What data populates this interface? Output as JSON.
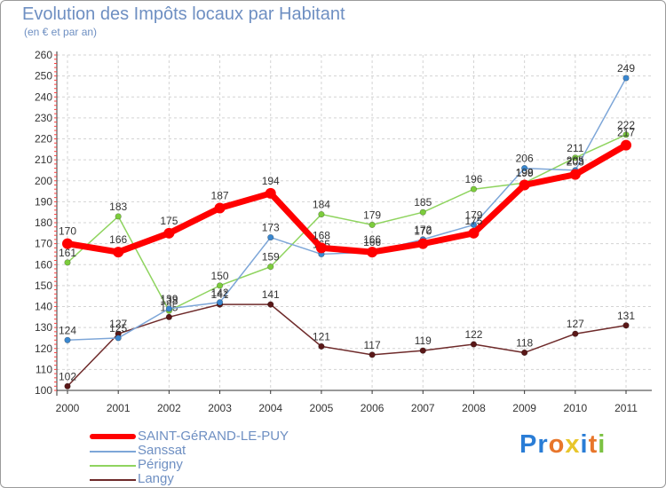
{
  "chart_data": {
    "type": "line",
    "title": "Evolution des Impôts locaux par Habitant",
    "subtitle": "(en € et par an)",
    "xlabel": "",
    "ylabel": "",
    "x": [
      "2000",
      "2001",
      "2002",
      "2003",
      "2004",
      "2005",
      "2006",
      "2007",
      "2008",
      "2009",
      "2010",
      "2011"
    ],
    "ylim": [
      100,
      260
    ],
    "yticks": [
      100,
      110,
      120,
      130,
      140,
      150,
      160,
      170,
      180,
      190,
      200,
      210,
      220,
      230,
      240,
      250,
      260
    ],
    "grid": true,
    "legend_position": "bottom-left",
    "series": [
      {
        "name": "Langy",
        "color": "#6e2a2a",
        "marker_color": "#5a1818",
        "values": [
          102,
          127,
          135,
          141,
          141,
          121,
          117,
          119,
          122,
          118,
          127,
          131
        ]
      },
      {
        "name": "Périgny",
        "color": "#8fd45f",
        "marker_color": "#7ccc3c",
        "values": [
          161,
          183,
          138,
          150,
          159,
          184,
          179,
          185,
          196,
          199,
          211,
          222
        ]
      },
      {
        "name": "Sanssat",
        "color": "#7da6d8",
        "marker_color": "#3a87cf",
        "values": [
          124,
          125,
          139,
          142,
          173,
          165,
          166,
          172,
          179,
          206,
          205,
          249
        ]
      },
      {
        "name": "SAINT-GéRAND-LE-PUY",
        "color": "#ff0000",
        "marker_color": "#ff0000",
        "values": [
          170,
          166,
          175,
          187,
          194,
          168,
          166,
          170,
          175,
          198,
          203,
          217
        ]
      }
    ]
  },
  "legend": [
    {
      "name": "SAINT-GéRAND-LE-PUY",
      "color": "#ff0000"
    },
    {
      "name": "Sanssat",
      "color": "#7da6d8"
    },
    {
      "name": "Périgny",
      "color": "#8fd45f"
    },
    {
      "name": "Langy",
      "color": "#6e2a2a"
    }
  ],
  "logo": {
    "parts": [
      "Pr",
      "o",
      "x",
      "i",
      "t",
      "i"
    ],
    "full": "Proxiti"
  }
}
